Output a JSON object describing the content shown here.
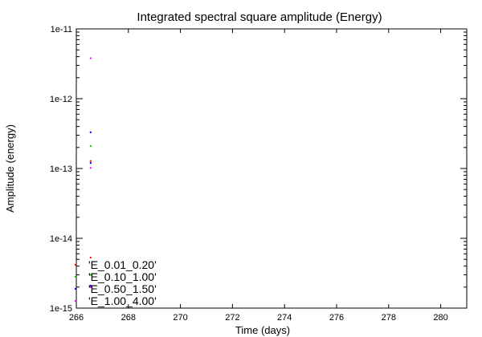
{
  "chart_data": {
    "type": "scatter",
    "title": "Integrated spectral square amplitude (Energy)",
    "xlabel": "Time (days)",
    "ylabel": "Amplitude (energy)",
    "xlim": [
      266,
      281
    ],
    "ylim": [
      1e-15,
      1e-11
    ],
    "yscale": "log",
    "grid": false,
    "legend_position": "bottom-left",
    "x_ticks": [
      266,
      268,
      270,
      272,
      274,
      276,
      278,
      280
    ],
    "x_tick_labels": [
      "266",
      "268",
      "270",
      "272",
      "274",
      "276",
      "278",
      "280"
    ],
    "y_ticks": [
      1e-15,
      1e-14,
      1e-13,
      1e-12,
      1e-11
    ],
    "y_tick_labels": [
      "1e-15",
      "1e-14",
      "1e-13",
      "1e-12",
      "1e-11"
    ],
    "series": [
      {
        "name": "'E_0.01_0.20'",
        "color": "#ff0000",
        "points": [
          [
            266.55,
            1.28e-13
          ],
          [
            266.55,
            5.3e-15
          ]
        ]
      },
      {
        "name": "'E_0.10_1.00'",
        "color": "#00cc00",
        "points": [
          [
            266.55,
            2.1e-13
          ],
          [
            266.55,
            3e-15
          ]
        ]
      },
      {
        "name": "'E_0.50_1.50'",
        "color": "#0000ff",
        "points": [
          [
            266.55,
            3.3e-13
          ],
          [
            266.55,
            1.2e-13
          ],
          [
            266.55,
            2.1e-15
          ]
        ]
      },
      {
        "name": "'E_1.00_4.00'",
        "color": "#ff00ff",
        "points": [
          [
            266.55,
            3.8e-12
          ],
          [
            266.55,
            1.02e-13
          ],
          [
            266.55,
            2e-15
          ]
        ]
      }
    ]
  }
}
